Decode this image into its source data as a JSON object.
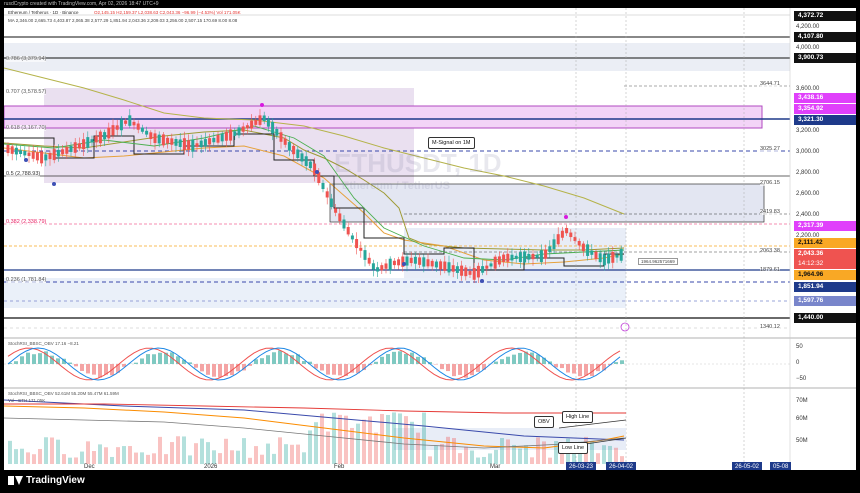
{
  "header": {
    "created": "rusdCrypto created with TradingView.com, Apr 02, 2026 18:47 UTC+9",
    "symbol_line": "Ethereum / Tetherus · 1D · Binance",
    "ohlc": "O2,145.15 H2,159.37 L2,038.63 C2,043.36 −96.99 (−4.53%) Vol 171.05K",
    "ma_line": "MA 2,346.00 2,665.73 4,403.87 2,065.38 2,577.29 1,851.94 2,043.36 2,209.03 3,256.00 2,507.15 170.69 8.00 8.08"
  },
  "watermark": {
    "symbol": "ETHUSDT, 1D",
    "name": "Ethereum / TetherUS"
  },
  "price_axis": {
    "ticks": [
      "4,200.00",
      "4,000.00",
      "3,600.00",
      "3,200.00",
      "3,000.00",
      "2,800.00",
      "2,600.00",
      "2,400.00",
      "2,200.00"
    ],
    "tags": {
      "t4372": "4,372.72",
      "t4107": "4,107.80",
      "t3900": "3,900.73",
      "t3438": "3,438.16",
      "t3354": "3,354.92",
      "t3321": "3,321.30",
      "t2317": "2,317.39",
      "t2111": "2,111.42",
      "t2043": "2,043.36",
      "countdown": "14:12:32",
      "t1964": "1,964.96",
      "t1851": "1,851.94",
      "t1597": "1,597.76",
      "t1440": "1,440.00"
    },
    "side_levels": {
      "l3644": "3644.71",
      "l3025": "3025.27",
      "l2706": "2706.15",
      "l2419": "2419.83",
      "l2063": "2063.38",
      "l1879": "1879.61",
      "l1340": "1340.12"
    }
  },
  "fib_levels": {
    "f786": "0.786 (3,379.94)",
    "f707": "0.707 (3,578.57)",
    "f618": "0.618 (3,167.70)",
    "f5": "0.5 (2,788.93)",
    "f382": "0.382 (2,338.79)",
    "f236": "0.236 (1,781.84)"
  },
  "annotations": {
    "m_signal": "M-Signal on 1M",
    "mid_price": "1964.962571669",
    "obv": "OBV",
    "high_line": "High Line",
    "low_line": "Low Line"
  },
  "stoch_panel": {
    "label": "StochRSI_BBSC_OBV  17.16  −8.21",
    "ticks": [
      "50",
      "0",
      "−50"
    ]
  },
  "obv_panel": {
    "label": "StochRSI_BBSC_OBV  52.61M  55.20M  55.47M  61.59M",
    "vol_label": "Vol · ETH  171.05K",
    "ticks": [
      "70M",
      "60M",
      "50M"
    ]
  },
  "time_axis": {
    "labels": [
      "Dec",
      "2026",
      "Feb",
      "Mar"
    ],
    "tags": [
      "26-03-23",
      "26-04-02",
      "26-05-02",
      "05-08"
    ]
  },
  "footer": {
    "brand": "TradingView"
  },
  "colors": {
    "magenta_zone": "#e040fb",
    "blue_zone": "#1e3a8a",
    "fib_pink": "#e91e63",
    "up_candle": "#26a69a",
    "down_candle": "#ef5350"
  }
}
